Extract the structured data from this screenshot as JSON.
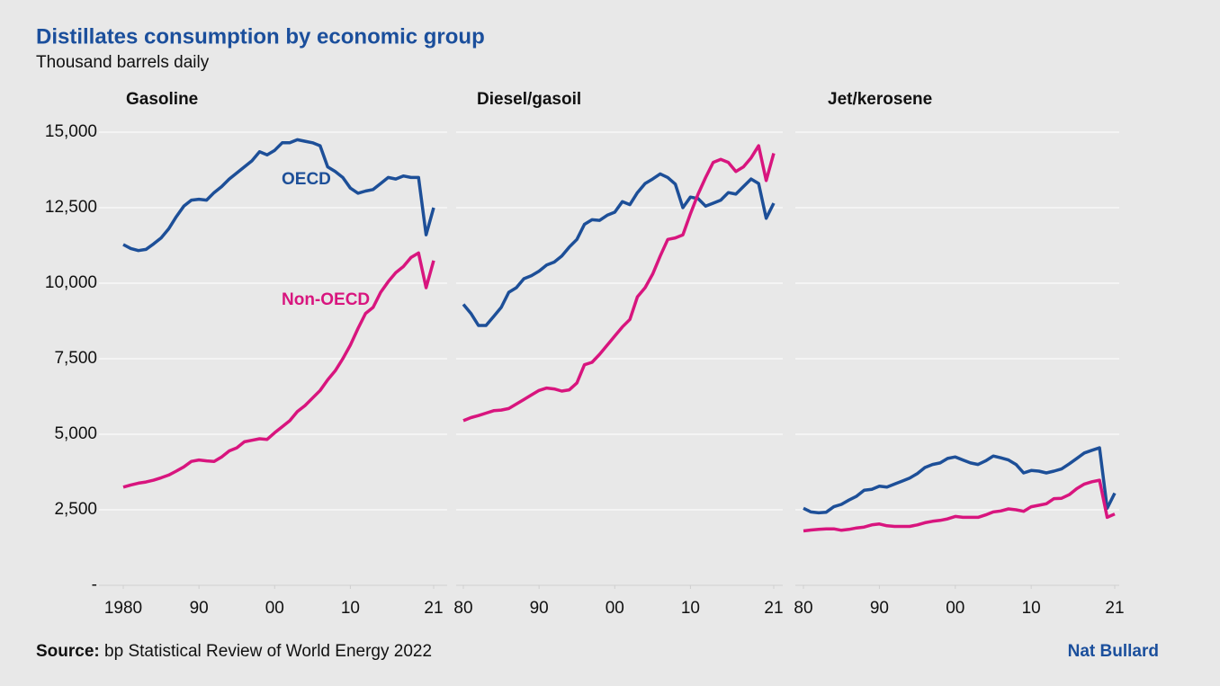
{
  "title": "Distillates consumption by economic group",
  "subtitle": "Thousand barrels daily",
  "source_label": "Source:",
  "source": "bp Statistical Review of World Energy 2022",
  "credit": "Nat Bullard",
  "chart_data": [
    {
      "type": "line",
      "title": "Gasoline",
      "xlim": [
        1980,
        2021
      ],
      "ylim": [
        0,
        15000
      ],
      "yticks": [
        {
          "value": 0,
          "label": "-"
        },
        {
          "value": 2500,
          "label": "2,500"
        },
        {
          "value": 5000,
          "label": "5,000"
        },
        {
          "value": 7500,
          "label": "7,500"
        },
        {
          "value": 10000,
          "label": "10,000"
        },
        {
          "value": 12500,
          "label": "12,500"
        },
        {
          "value": 15000,
          "label": "15,000"
        }
      ],
      "xticks": [
        1980,
        {
          "value": 1990,
          "label": "90"
        },
        {
          "value": 2000,
          "label": "00"
        },
        {
          "value": 2010,
          "label": "10"
        },
        {
          "value": 2021,
          "label": "21"
        }
      ],
      "x": [
        1980,
        1981,
        1982,
        1983,
        1984,
        1985,
        1986,
        1987,
        1988,
        1989,
        1990,
        1991,
        1992,
        1993,
        1994,
        1995,
        1996,
        1997,
        1998,
        1999,
        2000,
        2001,
        2002,
        2003,
        2004,
        2005,
        2006,
        2007,
        2008,
        2009,
        2010,
        2011,
        2012,
        2013,
        2014,
        2015,
        2016,
        2017,
        2018,
        2019,
        2020,
        2021
      ],
      "series": [
        {
          "name": "OECD",
          "color": "#1d4f98",
          "values": [
            11280,
            11150,
            11080,
            11120,
            11300,
            11500,
            11800,
            12200,
            12550,
            12750,
            12780,
            12750,
            13000,
            13200,
            13450,
            13650,
            13850,
            14050,
            14350,
            14250,
            14400,
            14650,
            14650,
            14750,
            14700,
            14650,
            14550,
            13850,
            13700,
            13500,
            13150,
            12980,
            13050,
            13100,
            13300,
            13500,
            13450,
            13550,
            13500,
            13500,
            11600,
            12500
          ]
        },
        {
          "name": "Non-OECD",
          "color": "#d8157e",
          "values": [
            3250,
            3320,
            3380,
            3420,
            3480,
            3560,
            3650,
            3780,
            3920,
            4100,
            4150,
            4120,
            4100,
            4250,
            4450,
            4550,
            4750,
            4800,
            4850,
            4830,
            5050,
            5250,
            5450,
            5750,
            5950,
            6200,
            6450,
            6800,
            7100,
            7500,
            7950,
            8500,
            9000,
            9200,
            9700,
            10050,
            10350,
            10550,
            10850,
            11000,
            9850,
            10750
          ]
        }
      ]
    },
    {
      "type": "line",
      "title": "Diesel/gasoil",
      "xlim": [
        1980,
        2021
      ],
      "xticks": [
        {
          "value": 1980,
          "label": "80"
        },
        {
          "value": 1990,
          "label": "90"
        },
        {
          "value": 2000,
          "label": "00"
        },
        {
          "value": 2010,
          "label": "10"
        },
        {
          "value": 2021,
          "label": "21"
        }
      ],
      "x": [
        1980,
        1981,
        1982,
        1983,
        1984,
        1985,
        1986,
        1987,
        1988,
        1989,
        1990,
        1991,
        1992,
        1993,
        1994,
        1995,
        1996,
        1997,
        1998,
        1999,
        2000,
        2001,
        2002,
        2003,
        2004,
        2005,
        2006,
        2007,
        2008,
        2009,
        2010,
        2011,
        2012,
        2013,
        2014,
        2015,
        2016,
        2017,
        2018,
        2019,
        2020,
        2021
      ],
      "series": [
        {
          "color": "#1d4f98",
          "values": [
            9300,
            9000,
            8600,
            8600,
            8900,
            9200,
            9700,
            9850,
            10150,
            10250,
            10400,
            10600,
            10700,
            10900,
            11200,
            11450,
            11950,
            12100,
            12080,
            12250,
            12350,
            12700,
            12600,
            13000,
            13300,
            13450,
            13620,
            13500,
            13280,
            12500,
            12850,
            12800,
            12550,
            12650,
            12750,
            13000,
            12950,
            13200,
            13450,
            13300,
            12150,
            12650
          ]
        },
        {
          "color": "#d8157e",
          "values": [
            5450,
            5550,
            5620,
            5700,
            5780,
            5800,
            5850,
            6000,
            6150,
            6300,
            6450,
            6530,
            6500,
            6430,
            6470,
            6700,
            7300,
            7380,
            7650,
            7950,
            8250,
            8550,
            8800,
            9550,
            9850,
            10300,
            10900,
            11450,
            11500,
            11600,
            12300,
            12950,
            13500,
            14000,
            14100,
            14000,
            13700,
            13850,
            14150,
            14550,
            13400,
            14300
          ]
        }
      ]
    },
    {
      "type": "line",
      "title": "Jet/kerosene",
      "xlim": [
        1980,
        2021
      ],
      "xticks": [
        {
          "value": 1980,
          "label": "80"
        },
        {
          "value": 1990,
          "label": "90"
        },
        {
          "value": 2000,
          "label": "00"
        },
        {
          "value": 2010,
          "label": "10"
        },
        {
          "value": 2021,
          "label": "21"
        }
      ],
      "x": [
        1980,
        1981,
        1982,
        1983,
        1984,
        1985,
        1986,
        1987,
        1988,
        1989,
        1990,
        1991,
        1992,
        1993,
        1994,
        1995,
        1996,
        1997,
        1998,
        1999,
        2000,
        2001,
        2002,
        2003,
        2004,
        2005,
        2006,
        2007,
        2008,
        2009,
        2010,
        2011,
        2012,
        2013,
        2014,
        2015,
        2016,
        2017,
        2018,
        2019,
        2020,
        2021
      ],
      "series": [
        {
          "color": "#1d4f98",
          "values": [
            2550,
            2430,
            2400,
            2420,
            2600,
            2680,
            2820,
            2950,
            3150,
            3180,
            3280,
            3250,
            3350,
            3450,
            3550,
            3700,
            3900,
            4000,
            4050,
            4200,
            4250,
            4150,
            4050,
            4000,
            4120,
            4280,
            4220,
            4150,
            4000,
            3720,
            3800,
            3780,
            3720,
            3780,
            3850,
            4020,
            4200,
            4380,
            4470,
            4550,
            2550,
            3050
          ]
        },
        {
          "color": "#d8157e",
          "values": [
            1800,
            1830,
            1850,
            1870,
            1870,
            1820,
            1850,
            1900,
            1930,
            2000,
            2030,
            1970,
            1950,
            1950,
            1950,
            2000,
            2070,
            2120,
            2150,
            2200,
            2280,
            2250,
            2250,
            2250,
            2330,
            2430,
            2460,
            2530,
            2500,
            2450,
            2600,
            2650,
            2700,
            2870,
            2880,
            3000,
            3200,
            3350,
            3430,
            3480,
            2250,
            2360
          ]
        }
      ]
    }
  ]
}
